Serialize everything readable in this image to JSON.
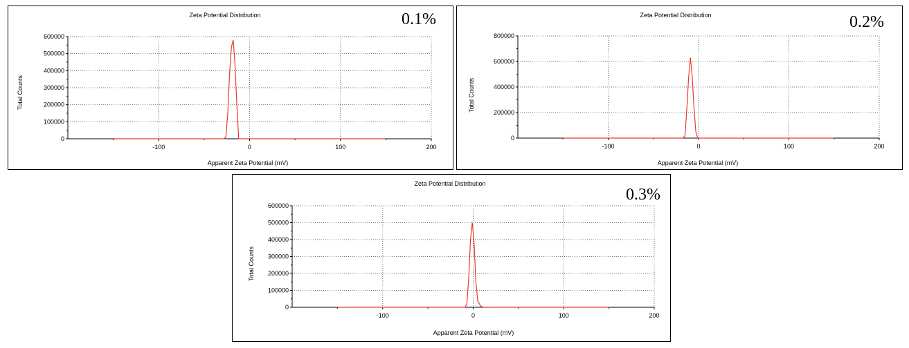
{
  "chart_data": [
    {
      "type": "line",
      "title": "Zeta Potential Distribution",
      "tag": "0.1%",
      "xlabel": "Apparent Zeta Potential (mV)",
      "ylabel": "Total Counts",
      "xlim": [
        -200,
        200
      ],
      "ylim": [
        0,
        600000
      ],
      "xticks": [
        -100,
        0,
        100,
        200
      ],
      "yticks": [
        0,
        100000,
        200000,
        300000,
        400000,
        500000,
        600000
      ],
      "grid": true,
      "series": [
        {
          "color": "#e8392c",
          "x": [
            -150,
            -28,
            -26,
            -24,
            -22,
            -20,
            -18,
            -16,
            -14,
            -12,
            150
          ],
          "y": [
            0,
            0,
            15000,
            150000,
            380000,
            540000,
            580000,
            430000,
            200000,
            0,
            0
          ]
        }
      ]
    },
    {
      "type": "line",
      "title": "Zeta Potential Distribution",
      "tag": "0.2%",
      "xlabel": "Apparent Zeta Potential (mV)",
      "ylabel": "Total Counts",
      "xlim": [
        -200,
        200
      ],
      "ylim": [
        0,
        800000
      ],
      "xticks": [
        -100,
        0,
        100,
        200
      ],
      "yticks": [
        0,
        200000,
        400000,
        600000,
        800000
      ],
      "grid": true,
      "series": [
        {
          "color": "#e8392c",
          "x": [
            -150,
            -17,
            -15,
            -13,
            -11,
            -9,
            -7,
            -5,
            -3,
            -1,
            150
          ],
          "y": [
            0,
            0,
            20000,
            220000,
            470000,
            630000,
            480000,
            230000,
            50000,
            0,
            0
          ]
        }
      ]
    },
    {
      "type": "line",
      "title": "Zeta Potential Distribution",
      "tag": "0.3%",
      "xlabel": "Apparent Zeta Potential (mV)",
      "ylabel": "Total Counts",
      "xlim": [
        -200,
        200
      ],
      "ylim": [
        0,
        600000
      ],
      "xticks": [
        -100,
        0,
        100,
        200
      ],
      "yticks": [
        0,
        100000,
        200000,
        300000,
        400000,
        500000,
        600000
      ],
      "grid": true,
      "series": [
        {
          "color": "#e8392c",
          "x": [
            -150,
            -9,
            -7,
            -5,
            -3,
            -1,
            1,
            3,
            5,
            8,
            11,
            150
          ],
          "y": [
            0,
            0,
            20000,
            170000,
            400000,
            500000,
            380000,
            150000,
            40000,
            8000,
            0,
            0
          ]
        }
      ]
    }
  ]
}
